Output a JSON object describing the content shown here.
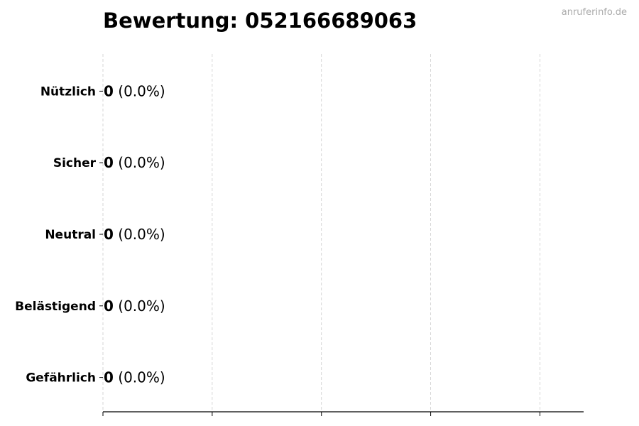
{
  "watermark": "anruferinfo.de",
  "chart_data": {
    "type": "bar",
    "orientation": "horizontal",
    "title": "Bewertung: 052166689063",
    "categories": [
      "Nützlich",
      "Sicher",
      "Neutral",
      "Belästigend",
      "Gefährlich"
    ],
    "values": [
      0,
      0,
      0,
      0,
      0
    ],
    "data_labels": [
      {
        "count": "0",
        "percent": "(0.0%)"
      },
      {
        "count": "0",
        "percent": "(0.0%)"
      },
      {
        "count": "0",
        "percent": "(0.0%)"
      },
      {
        "count": "0",
        "percent": "(0.0%)"
      },
      {
        "count": "0",
        "percent": "(0.0%)"
      }
    ],
    "xlabel": "",
    "ylabel": "",
    "xlim": [
      0,
      4.4
    ],
    "xticks": [
      0,
      1,
      2,
      3,
      4
    ],
    "xtick_labels_shown": false,
    "grid": "x dashed",
    "colors": {
      "bar_edge": "#000000",
      "grid": "#cccccc",
      "watermark": "#aaaaaa"
    }
  }
}
